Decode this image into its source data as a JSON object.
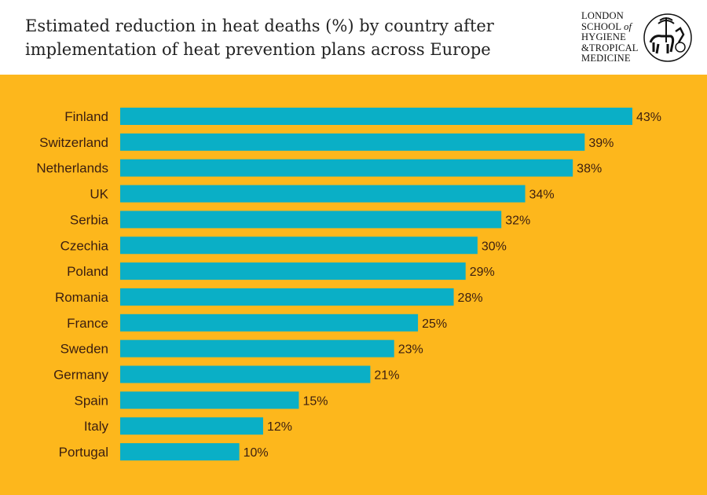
{
  "header": {
    "title_line1": "Estimated reduction in heat deaths (%) by country after",
    "title_line2": "implementation of heat prevention plans across Europe",
    "logo_text": [
      "LONDON",
      "SCHOOL of",
      "HYGIENE",
      "&TROPICAL",
      "MEDICINE"
    ]
  },
  "colors": {
    "background": "#FDB71C",
    "bar": "#0AAFC6",
    "text": "#3B1E10",
    "header_bg": "#FFFFFF"
  },
  "chart_data": {
    "type": "bar",
    "orientation": "horizontal",
    "title": "Estimated reduction in heat deaths (%) by country after implementation of heat prevention plans across Europe",
    "categories": [
      "Finland",
      "Switzerland",
      "Netherlands",
      "UK",
      "Serbia",
      "Czechia",
      "Poland",
      "Romania",
      "France",
      "Sweden",
      "Germany",
      "Spain",
      "Italy",
      "Portugal"
    ],
    "values": [
      43,
      39,
      38,
      34,
      32,
      30,
      29,
      28,
      25,
      23,
      21,
      15,
      12,
      10
    ],
    "value_suffix": "%",
    "xlim": [
      0,
      43
    ],
    "grid": false,
    "data_labels": true
  }
}
